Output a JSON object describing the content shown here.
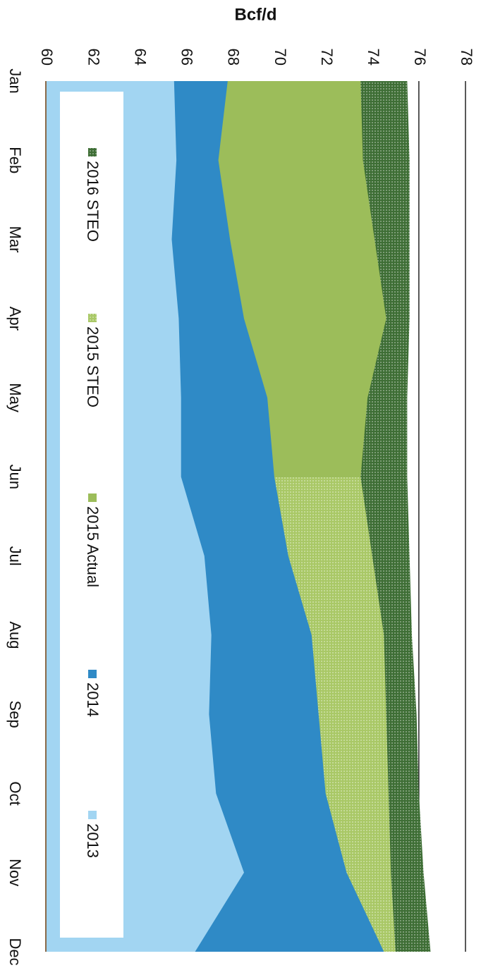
{
  "chart_data": {
    "type": "area",
    "stacked": false,
    "y_label": "Bcf/d",
    "categories": [
      "Jan",
      "Feb",
      "Mar",
      "Apr",
      "May",
      "Jun",
      "Jul",
      "Aug",
      "Sep",
      "Oct",
      "Nov",
      "Dec"
    ],
    "ylim": [
      60,
      78
    ],
    "yticks": [
      60,
      62,
      64,
      66,
      68,
      70,
      72,
      74,
      76,
      78
    ],
    "grid": true,
    "rotation": 90,
    "legend": "bottom",
    "series": [
      {
        "name": "2013",
        "color": "#a2d5f2",
        "pattern": "solid",
        "values": [
          65.5,
          65.6,
          65.4,
          65.7,
          65.8,
          65.8,
          66.8,
          67.1,
          67.0,
          67.3,
          68.5,
          66.4
        ]
      },
      {
        "name": "2014",
        "color": "#2f8ac6",
        "pattern": "solid",
        "values": [
          67.8,
          67.4,
          67.9,
          68.5,
          69.5,
          69.8,
          70.4,
          71.4,
          71.7,
          72.0,
          72.9,
          74.5
        ]
      },
      {
        "name": "2015 Actual",
        "color": "#9cbd5a",
        "pattern": "solid",
        "values": [
          73.5,
          73.6,
          74.1,
          74.6,
          73.8,
          73.5,
          null,
          null,
          null,
          null,
          null,
          null
        ]
      },
      {
        "name": "2015 STEO",
        "color": "#a9c866",
        "pattern": "dots",
        "values": [
          null,
          null,
          null,
          null,
          null,
          73.5,
          74.0,
          74.5,
          74.6,
          74.7,
          74.8,
          75.0
        ]
      },
      {
        "name": "2016 STEO",
        "color": "#3e6e35",
        "pattern": "dots",
        "values": [
          75.5,
          75.6,
          75.6,
          75.6,
          75.5,
          75.5,
          75.6,
          75.7,
          75.9,
          76.0,
          76.2,
          76.5
        ]
      }
    ]
  }
}
